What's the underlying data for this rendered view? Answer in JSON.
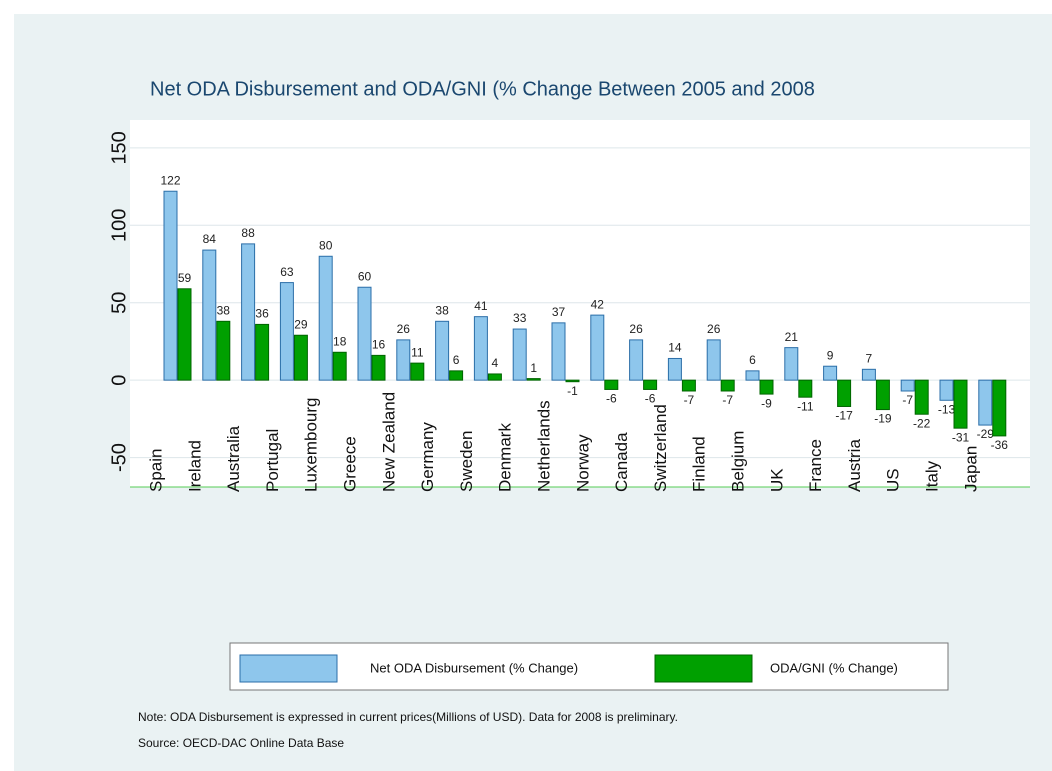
{
  "chart_data": {
    "type": "bar",
    "title": "Net ODA Disbursement and ODA/GNI (% Change Between 2005 and 2008",
    "categories": [
      "Spain",
      "Ireland",
      "Australia",
      "Portugal",
      "Luxembourg",
      "Greece",
      "New Zealand",
      "Germany",
      "Sweden",
      "Denmark",
      "Netherlands",
      "Norway",
      "Canada",
      "Switzerland",
      "Finland",
      "Belgium",
      "UK",
      "France",
      "Austria",
      "US",
      "Italy",
      "Japan"
    ],
    "series": [
      {
        "name": "Net ODA Disbursement (% Change)",
        "color": "#8ec6ec",
        "values": [
          122,
          84,
          88,
          63,
          80,
          60,
          26,
          38,
          41,
          33,
          37,
          42,
          26,
          14,
          26,
          6,
          21,
          9,
          7,
          -7,
          -13,
          -29
        ]
      },
      {
        "name": "ODA/GNI (% Change)",
        "color": "#00a000",
        "values": [
          59,
          38,
          36,
          29,
          18,
          16,
          11,
          6,
          4,
          1,
          -1,
          -6,
          -6,
          -7,
          -7,
          -9,
          -11,
          -17,
          -19,
          -22,
          -31,
          -36
        ]
      }
    ],
    "ylim": [
      -69,
      168
    ],
    "yticks": [
      -50,
      0,
      50,
      100,
      150
    ],
    "grid": true,
    "note": "Note: ODA Disbursement is expressed in current prices(Millions of USD). Data for 2008 is preliminary.",
    "source": "Source: OECD-DAC Online Data Base"
  }
}
